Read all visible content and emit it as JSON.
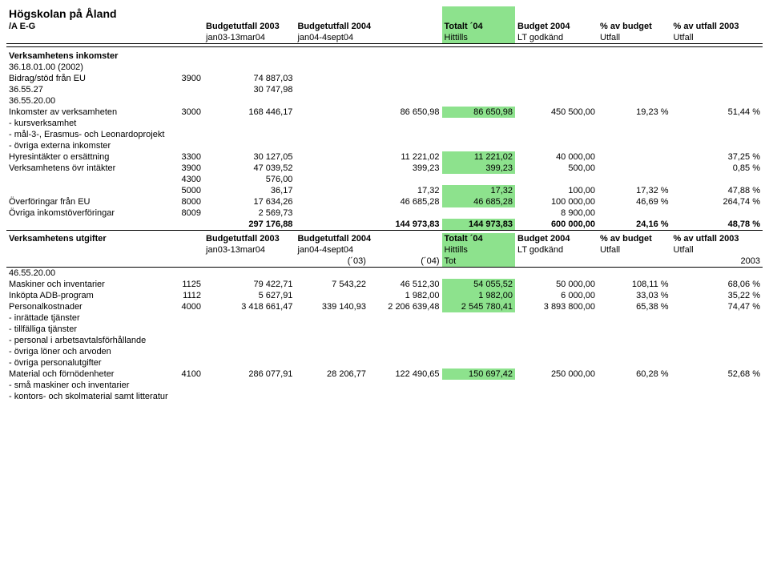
{
  "header": {
    "title": "Högskolan på Åland",
    "subtitle": "/A E-G",
    "cols": {
      "b03_top": "Budgetutfall 2003",
      "b03_bot": "jan03-13mar04",
      "b04_top": "Budgetutfall 2004",
      "b04_bot": "jan04-4sept04",
      "tot_top": "Totalt ´04",
      "tot_bot": "Hittills",
      "bud_top": "Budget 2004",
      "bud_bot": "LT godkänd",
      "pb_top": "% av budget",
      "pb_bot": "Utfall",
      "pu_top": "% av utfall 2003",
      "pu_bot": "Utfall"
    }
  },
  "income_section_title": "Verksamhetens inkomster",
  "lines": {
    "l0": "36.18.01.00 (2002)",
    "l1_lbl": "Bidrag/stöd från EU",
    "l1_code": "3900",
    "l1_b03": "74 887,03",
    "l2_lbl": "36.55.27",
    "l2_b03": "30 747,98",
    "l3_lbl": "36.55.20.00",
    "l4_lbl": "Inkomster av verksamheten",
    "l4_code": "3000",
    "l4_b03": "168 446,17",
    "l4_b04b": "86 650,98",
    "l4_tot": "86 650,98",
    "l4_bud": "450 500,00",
    "l4_pb": "19,23 %",
    "l4_pu": "51,44 %",
    "l5_lbl": " - kursverksamhet",
    "l6_lbl": " - mål-3-, Erasmus- och Leonardoprojekt",
    "l7_lbl": " - övriga externa inkomster",
    "l8_lbl": "Hyresintäkter o ersättning",
    "l8_code": "3300",
    "l8_b03": "30 127,05",
    "l8_b04b": "11 221,02",
    "l8_tot": "11 221,02",
    "l8_bud": "40 000,00",
    "l8_pu": "37,25 %",
    "l9_lbl": "Verksamhetens övr intäkter",
    "l9_code": "3900",
    "l9_b03": "47 039,52",
    "l9_b04b": "399,23",
    "l9_tot": "399,23",
    "l9_bud": "500,00",
    "l9_pu": "0,85 %",
    "l10_code": "4300",
    "l10_b03": "576,00",
    "l11_code": "5000",
    "l11_b03": "36,17",
    "l11_b04b": "17,32",
    "l11_tot": "17,32",
    "l11_bud": "100,00",
    "l11_pb": "17,32 %",
    "l11_pu": "47,88 %",
    "l12_lbl": "Överföringar från EU",
    "l12_code": "8000",
    "l12_b03": "17 634,26",
    "l12_b04b": "46 685,28",
    "l12_tot": "46 685,28",
    "l12_bud": "100 000,00",
    "l12_pb": "46,69 %",
    "l12_pu": "264,74 %",
    "l13_lbl": "Övriga inkomstöverföringar",
    "l13_code": "8009",
    "l13_b03": "2 569,73",
    "l13_bud": "8 900,00",
    "sum_b03": "297 176,88",
    "sum_b04b": "144 973,83",
    "sum_tot": "144 973,83",
    "sum_bud": "600 000,00",
    "sum_pb": "24,16 %",
    "sum_pu": "48,78 %"
  },
  "expense_header": {
    "title": "Verksamhetens utgifter",
    "b03_top": "Budgetutfall 2003",
    "b03_bot": "jan03-13mar04",
    "b04_top": "Budgetutfall 2004",
    "b04_bot": "jan04-4sept04",
    "tot_top": "Totalt ´04",
    "tot_bot": "Hittills",
    "bud_top": "Budget 2004",
    "bud_bot": "LT godkänd",
    "pb_top": "% av budget",
    "pb_bot": "Utfall",
    "pu_top": "% av utfall 2003",
    "pu_bot": "Utfall",
    "sub_a": "(´03)",
    "sub_b": "(´04)",
    "sub_tot": "Tot",
    "sub_year": "2003"
  },
  "elines": {
    "e0": "46.55.20.00",
    "e1_lbl": "Maskiner och inventarier",
    "e1_code": "1125",
    "e1_b03": "79 422,71",
    "e1_b04a": "7 543,22",
    "e1_b04b": "46 512,30",
    "e1_tot": "54 055,52",
    "e1_bud": "50 000,00",
    "e1_pb": "108,11 %",
    "e1_pu": "68,06 %",
    "e2_lbl": "Inköpta ADB-program",
    "e2_code": "1112",
    "e2_b03": "5 627,91",
    "e2_b04b": "1 982,00",
    "e2_tot": "1 982,00",
    "e2_bud": "6 000,00",
    "e2_pb": "33,03 %",
    "e2_pu": "35,22 %",
    "e3_lbl": "Personalkostnader",
    "e3_code": "4000",
    "e3_b03": "3 418 661,47",
    "e3_b04a": "339 140,93",
    "e3_b04b": "2 206 639,48",
    "e3_tot": "2 545 780,41",
    "e3_bud": "3 893 800,00",
    "e3_pb": "65,38 %",
    "e3_pu": "74,47 %",
    "e4_lbl": " - inrättade tjänster",
    "e5_lbl": " - tillfälliga tjänster",
    "e6_lbl": " - personal i arbetsavtalsförhållande",
    "e7_lbl": " - övriga löner och arvoden",
    "e8_lbl": " - övriga personalutgifter",
    "e9_lbl": "Material och förnödenheter",
    "e9_code": "4100",
    "e9_b03": "286 077,91",
    "e9_b04a": "28 206,77",
    "e9_b04b": "122 490,65",
    "e9_tot": "150 697,42",
    "e9_bud": "250 000,00",
    "e9_pb": "60,28 %",
    "e9_pu": "52,68 %",
    "e10_lbl": " - små maskiner och inventarier",
    "e11_lbl": " - kontors- och skolmaterial samt litteratur"
  }
}
